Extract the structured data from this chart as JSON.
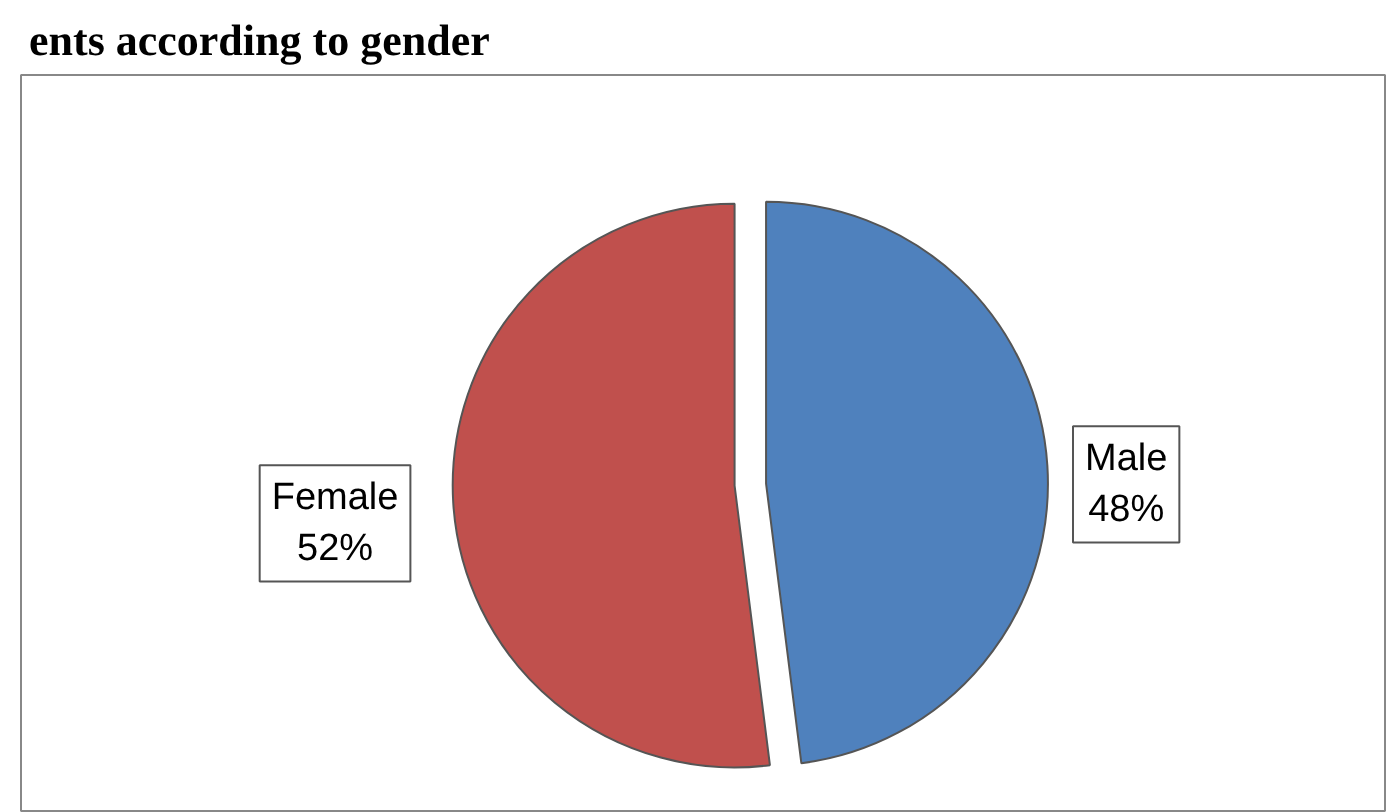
{
  "chart_data": {
    "type": "pie",
    "title": "ents according to gender",
    "categories": [
      "Male",
      "Female"
    ],
    "values": [
      48,
      52
    ],
    "colors": [
      "#4f81bd",
      "#c0504d"
    ],
    "value_labels": [
      "48%",
      "52%"
    ]
  }
}
